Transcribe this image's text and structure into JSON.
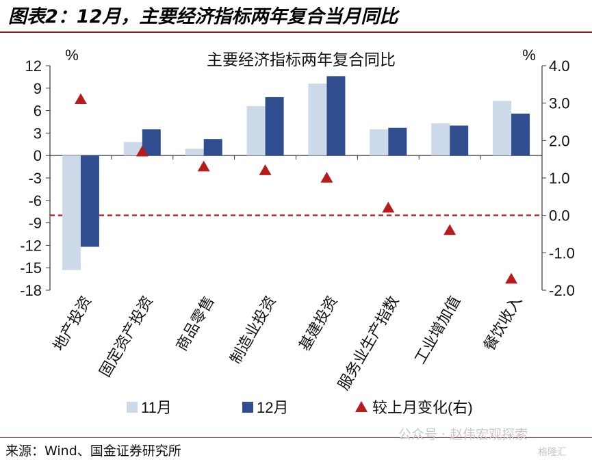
{
  "figure_title": "图表2：12月，主要经济指标两年复合当月同比",
  "source": "来源：Wind、国金证券研究所",
  "watermark": "公众号 · 赵伟宏观探索",
  "watermark2": "格隆汇",
  "colors": {
    "nov": "#ccd9e8",
    "dec": "#2f4d8f",
    "change": "#b71c1c",
    "zero_line": "#c0271f",
    "rule": "#8b1e1e"
  },
  "chart_data": {
    "type": "bar",
    "title": "主要经济指标两年复合同比",
    "left_unit": "%",
    "right_unit": "%",
    "categories": [
      "地产投资",
      "固定资产投资",
      "商品零售",
      "制造业投资",
      "基建投资",
      "服务业生产指数",
      "工业增加值",
      "餐饮收入"
    ],
    "series": [
      {
        "name": "11月",
        "axis": "left",
        "kind": "bar",
        "values": [
          -15.3,
          1.8,
          0.9,
          6.6,
          9.6,
          3.5,
          4.3,
          7.3
        ]
      },
      {
        "name": "12月",
        "axis": "left",
        "kind": "bar",
        "values": [
          -12.2,
          3.5,
          2.2,
          7.8,
          10.6,
          3.7,
          4.0,
          5.6
        ]
      },
      {
        "name": "较上月变化(右)",
        "axis": "right",
        "kind": "triangle",
        "values": [
          3.1,
          1.7,
          1.3,
          1.2,
          1.0,
          0.2,
          -0.4,
          -1.7
        ]
      }
    ],
    "left_axis": {
      "ylim": [
        -18,
        12
      ],
      "ticks": [
        "12",
        "9",
        "6",
        "3",
        "0",
        "-3",
        "-6",
        "-9",
        "-12",
        "-15",
        "-18"
      ]
    },
    "right_axis": {
      "ylim": [
        -2.0,
        4.0
      ],
      "ticks": [
        "4.0",
        "3.0",
        "2.0",
        "1.0",
        "0.0",
        "-1.0",
        "-2.0"
      ]
    },
    "reference_line": {
      "axis": "right",
      "value": 0.0
    },
    "grid": false,
    "legend_position": "bottom"
  }
}
